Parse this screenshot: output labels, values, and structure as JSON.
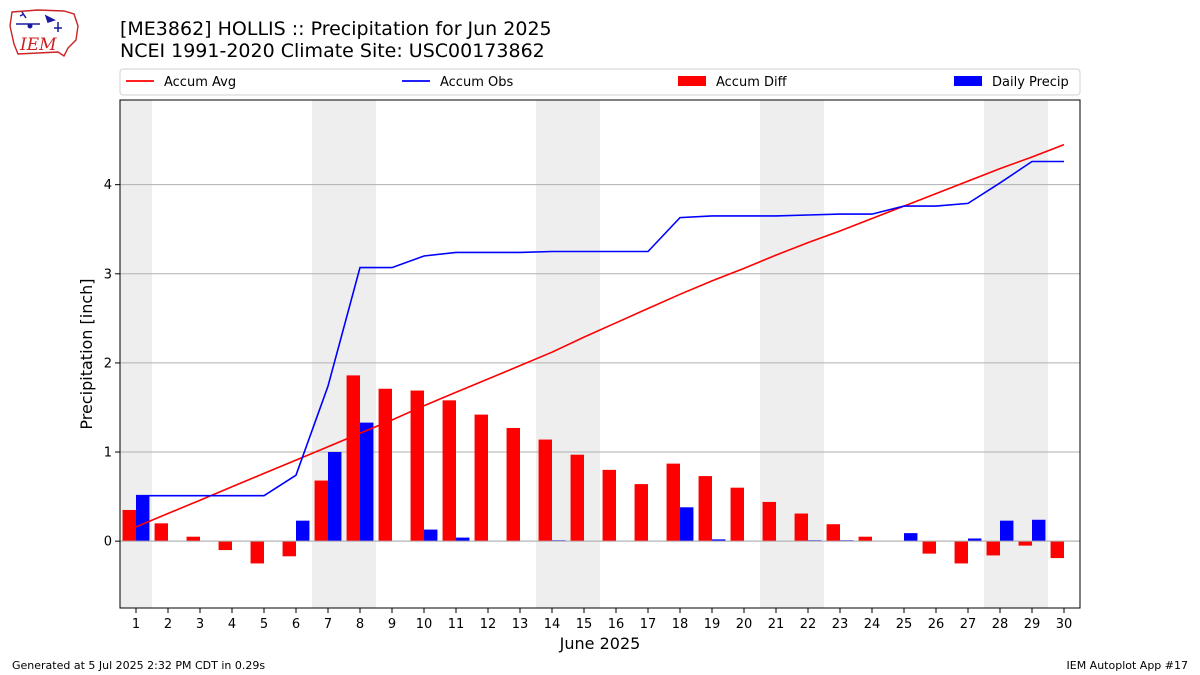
{
  "header": {
    "title": "[ME3862] HOLLIS :: Precipitation for Jun 2025",
    "subtitle": "NCEI 1991-2020 Climate Site: USC00173862",
    "logo_text": "IEM"
  },
  "footer": {
    "left": "Generated at 5 Jul 2025 2:32 PM CDT in 0.29s",
    "right": "IEM Autoplot App #17"
  },
  "colors": {
    "avg": "#ff0000",
    "obs": "#0000ff",
    "diff": "#ff0000",
    "daily": "#0000ff",
    "weekend_shade": "#eeeeee",
    "grid": "#b0b0b0"
  },
  "chart_data": {
    "type": "bar",
    "xlabel": "June 2025",
    "ylabel": "Precipitation [inch]",
    "ylim": [
      -0.75,
      4.95
    ],
    "yticks": [
      0,
      1,
      2,
      3,
      4
    ],
    "grid": "y",
    "legend_placement": "top",
    "x": [
      1,
      2,
      3,
      4,
      5,
      6,
      7,
      8,
      9,
      10,
      11,
      12,
      13,
      14,
      15,
      16,
      17,
      18,
      19,
      20,
      21,
      22,
      23,
      24,
      25,
      26,
      27,
      28,
      29,
      30
    ],
    "shaded_days": [
      [
        1,
        1
      ],
      [
        7,
        8
      ],
      [
        14,
        15
      ],
      [
        21,
        22
      ],
      [
        28,
        29
      ]
    ],
    "series": [
      {
        "name": "Accum Avg",
        "kind": "line",
        "values": [
          0.16,
          0.31,
          0.46,
          0.61,
          0.76,
          0.91,
          1.06,
          1.21,
          1.36,
          1.52,
          1.67,
          1.82,
          1.97,
          2.12,
          2.29,
          2.45,
          2.61,
          2.77,
          2.92,
          3.06,
          3.21,
          3.35,
          3.48,
          3.62,
          3.76,
          3.9,
          4.04,
          4.18,
          4.31,
          4.45
        ]
      },
      {
        "name": "Accum Obs",
        "kind": "line",
        "values": [
          0.51,
          0.51,
          0.51,
          0.51,
          0.51,
          0.74,
          1.74,
          3.07,
          3.07,
          3.2,
          3.24,
          3.24,
          3.24,
          3.25,
          3.25,
          3.25,
          3.25,
          3.63,
          3.65,
          3.65,
          3.65,
          3.66,
          3.67,
          3.67,
          3.76,
          3.76,
          3.79,
          4.02,
          4.26,
          4.26
        ]
      },
      {
        "name": "Accum Diff",
        "kind": "bar",
        "values": [
          0.35,
          0.2,
          0.05,
          -0.1,
          -0.25,
          -0.17,
          0.68,
          1.86,
          1.71,
          1.69,
          1.58,
          1.42,
          1.27,
          1.14,
          0.97,
          0.8,
          0.64,
          0.87,
          0.73,
          0.6,
          0.44,
          0.31,
          0.19,
          0.05,
          0.0,
          -0.14,
          -0.25,
          -0.16,
          -0.05,
          -0.19
        ]
      },
      {
        "name": "Daily Precip",
        "kind": "bar",
        "values": [
          0.51,
          0,
          0,
          0,
          0,
          0.23,
          1.0,
          1.33,
          0,
          0.13,
          0.04,
          0,
          0,
          0.01,
          0,
          0,
          0,
          0.38,
          0.02,
          0,
          0,
          0.01,
          0.01,
          0,
          0.09,
          0,
          0.03,
          0.23,
          0.24,
          0
        ]
      }
    ]
  }
}
